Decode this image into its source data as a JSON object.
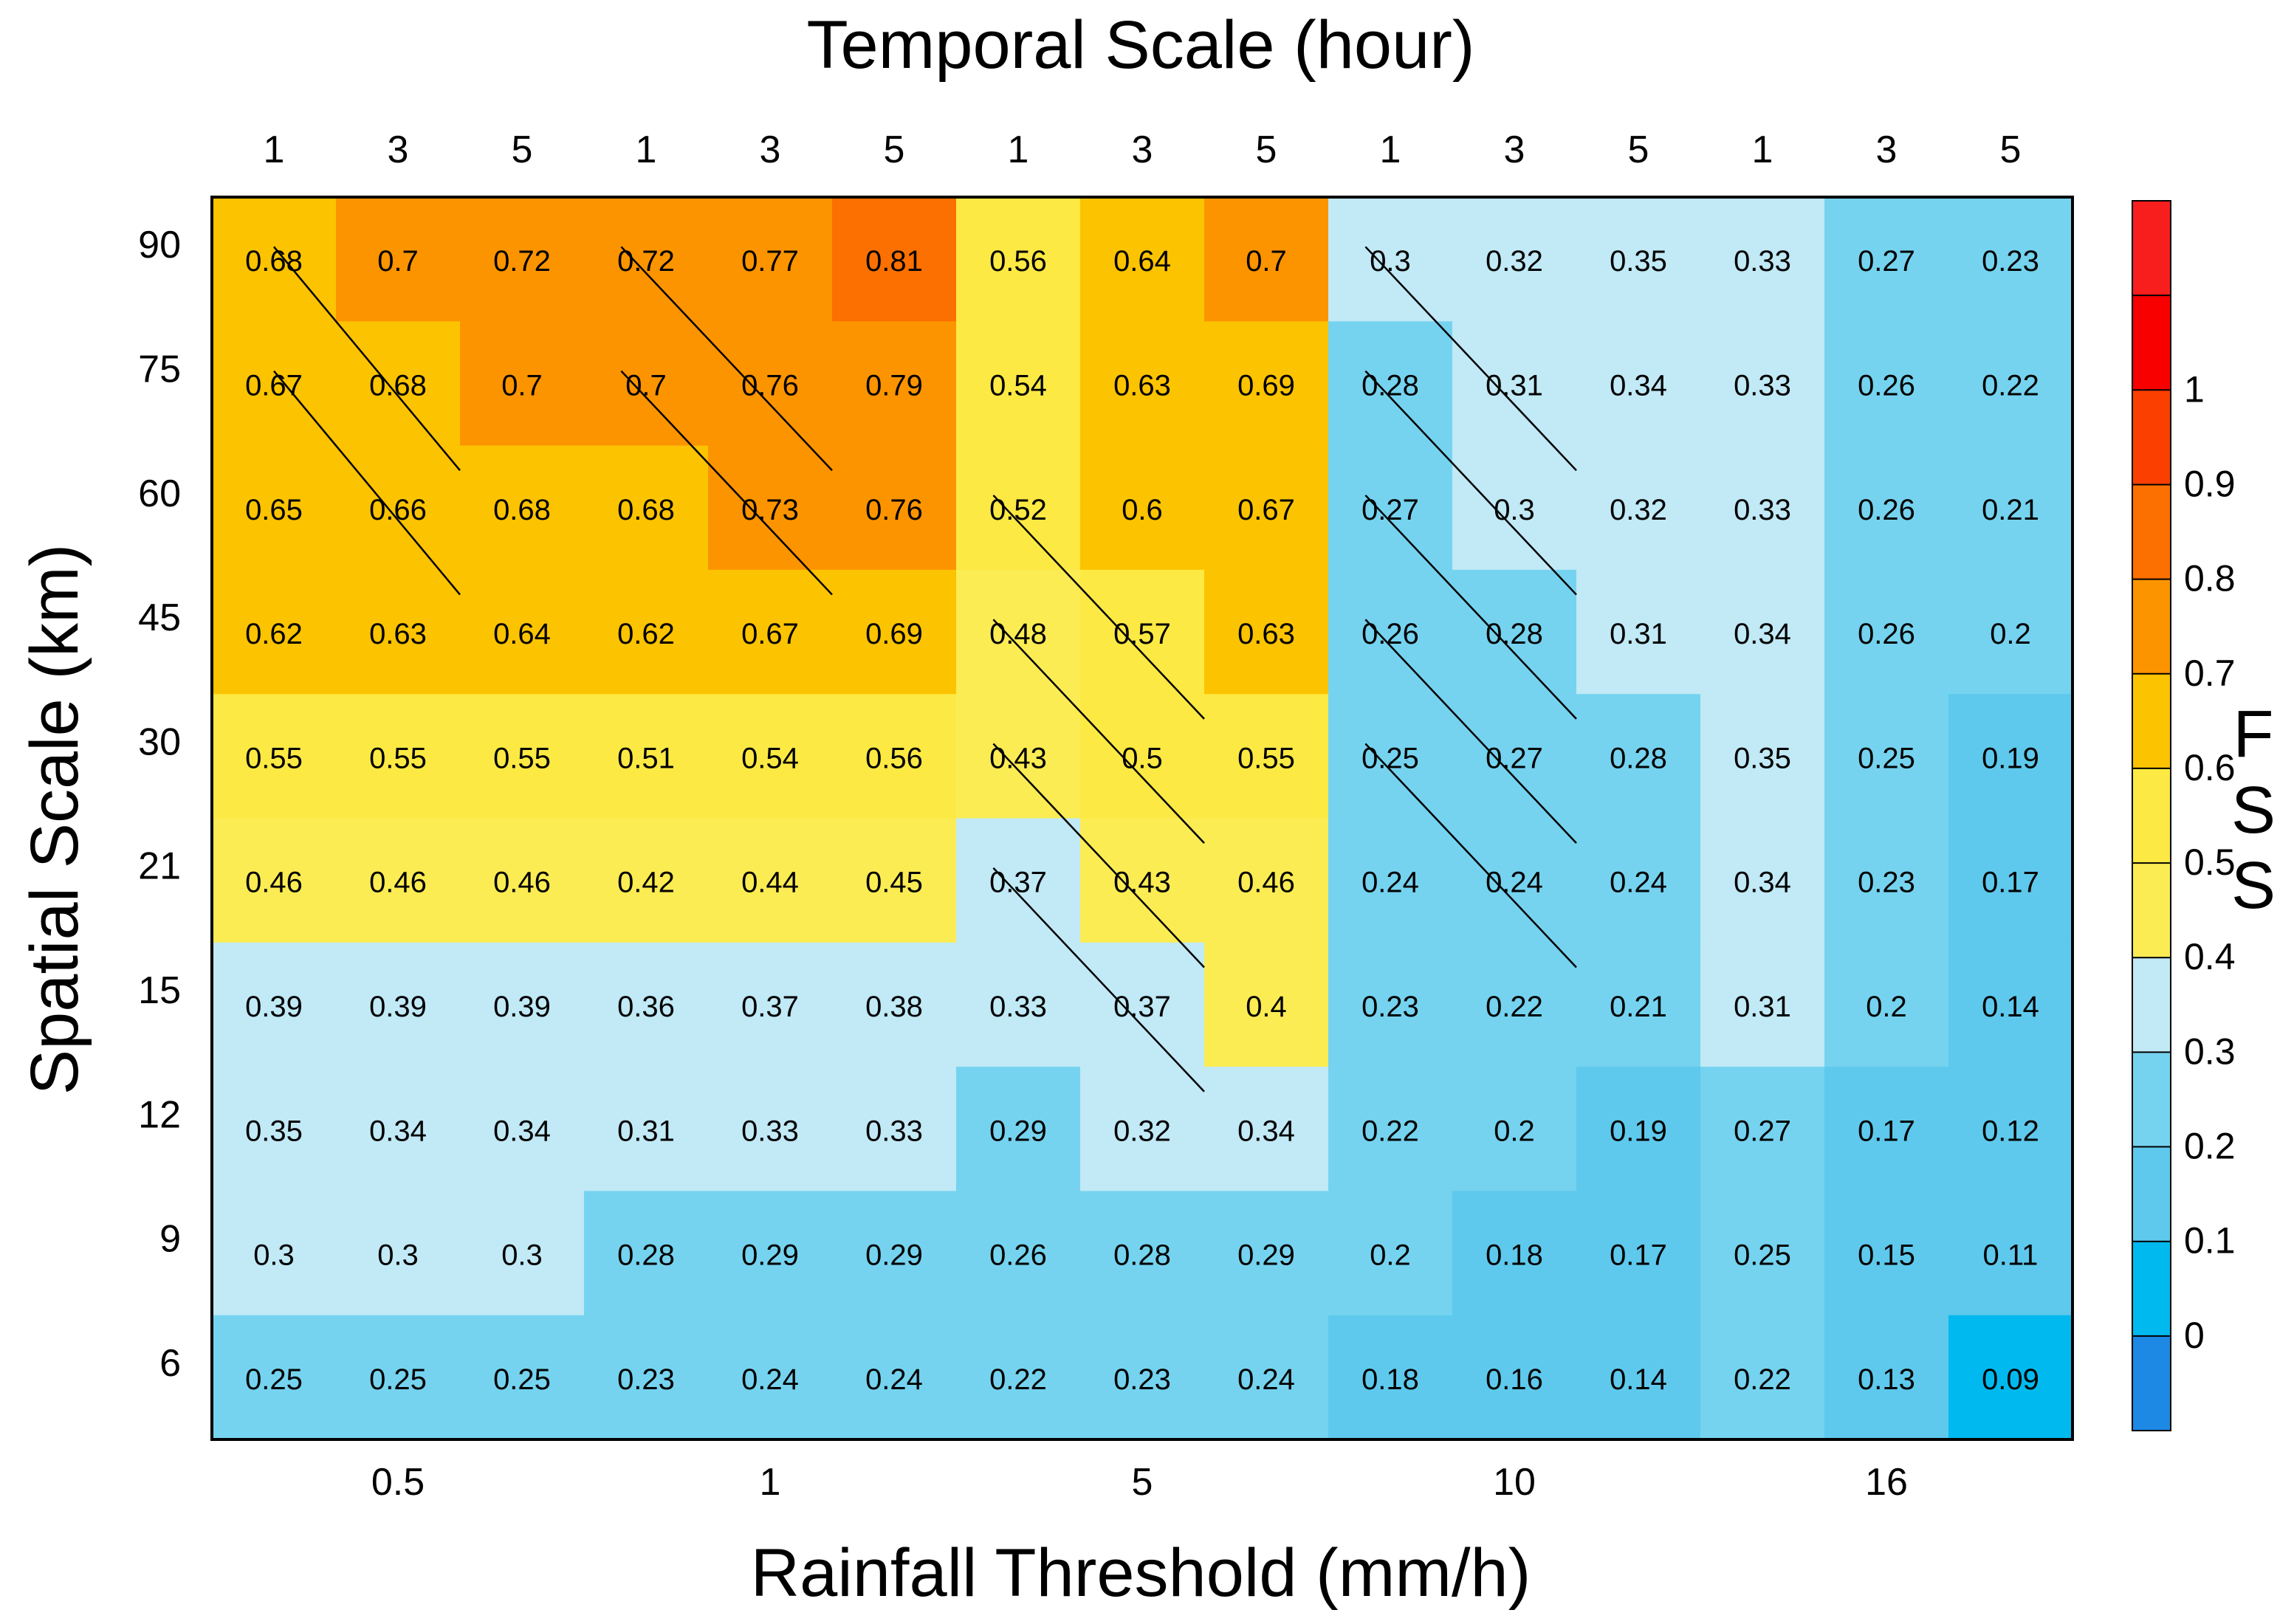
{
  "chart_data": {
    "type": "heatmap",
    "title": "Temporal Scale (hour)",
    "xlabel": "Rainfall Threshold (mm/h)",
    "ylabel": "Spatial Scale (km)",
    "colorbar_label": [
      "F",
      "S",
      "S"
    ],
    "top_ticks": [
      "1",
      "3",
      "5",
      "1",
      "3",
      "5",
      "1",
      "3",
      "5",
      "1",
      "3",
      "5",
      "1",
      "3",
      "5"
    ],
    "bottom_ticks": [
      "0.5",
      "1",
      "5",
      "10",
      "16"
    ],
    "rows": [
      "90",
      "75",
      "60",
      "45",
      "30",
      "21",
      "15",
      "12",
      "9",
      "6"
    ],
    "values": [
      [
        0.68,
        0.7,
        0.72,
        0.72,
        0.77,
        0.81,
        0.56,
        0.64,
        0.7,
        0.3,
        0.32,
        0.35,
        0.33,
        0.27,
        0.23
      ],
      [
        0.67,
        0.68,
        0.7,
        0.7,
        0.76,
        0.79,
        0.54,
        0.63,
        0.69,
        0.28,
        0.31,
        0.34,
        0.33,
        0.26,
        0.22
      ],
      [
        0.65,
        0.66,
        0.68,
        0.68,
        0.73,
        0.76,
        0.52,
        0.6,
        0.67,
        0.27,
        0.3,
        0.32,
        0.33,
        0.26,
        0.21
      ],
      [
        0.62,
        0.63,
        0.64,
        0.62,
        0.67,
        0.69,
        0.48,
        0.57,
        0.63,
        0.26,
        0.28,
        0.31,
        0.34,
        0.26,
        0.2
      ],
      [
        0.55,
        0.55,
        0.55,
        0.51,
        0.54,
        0.56,
        0.43,
        0.5,
        0.55,
        0.25,
        0.27,
        0.28,
        0.35,
        0.25,
        0.19
      ],
      [
        0.46,
        0.46,
        0.46,
        0.42,
        0.44,
        0.45,
        0.37,
        0.43,
        0.46,
        0.24,
        0.24,
        0.24,
        0.34,
        0.23,
        0.17
      ],
      [
        0.39,
        0.39,
        0.39,
        0.36,
        0.37,
        0.38,
        0.33,
        0.37,
        0.4,
        0.23,
        0.22,
        0.21,
        0.31,
        0.2,
        0.14
      ],
      [
        0.35,
        0.34,
        0.34,
        0.31,
        0.33,
        0.33,
        0.29,
        0.32,
        0.34,
        0.22,
        0.2,
        0.19,
        0.27,
        0.17,
        0.12
      ],
      [
        0.3,
        0.3,
        0.3,
        0.28,
        0.29,
        0.29,
        0.26,
        0.28,
        0.29,
        0.2,
        0.18,
        0.17,
        0.25,
        0.15,
        0.11
      ],
      [
        0.25,
        0.25,
        0.25,
        0.23,
        0.24,
        0.24,
        0.22,
        0.23,
        0.24,
        0.18,
        0.16,
        0.14,
        0.22,
        0.13,
        0.09
      ]
    ],
    "colorbar": {
      "ticks": [
        "1",
        "0.9",
        "0.8",
        "0.7",
        "0.6",
        "0.5",
        "0.4",
        "0.3",
        "0.2",
        "0.1",
        "0"
      ],
      "colors": [
        "#1e88e5",
        "#00b9ef",
        "#5ec9ec",
        "#75d3ef",
        "#c1e9f6",
        "#fbec53",
        "#fde943",
        "#fcc300",
        "#fc9400",
        "#fb7000",
        "#fa3f00",
        "#f80000",
        "#f81e1e"
      ]
    },
    "lines": [
      {
        "x1": 0.5,
        "y1": 0.4,
        "x2": 2.0,
        "y2": 2.2
      },
      {
        "x1": 0.5,
        "y1": 1.4,
        "x2": 2.0,
        "y2": 3.2
      },
      {
        "x1": 3.3,
        "y1": 0.4,
        "x2": 5.0,
        "y2": 2.2
      },
      {
        "x1": 3.3,
        "y1": 1.4,
        "x2": 5.0,
        "y2": 3.2
      },
      {
        "x1": 6.3,
        "y1": 2.4,
        "x2": 8.0,
        "y2": 4.2
      },
      {
        "x1": 6.3,
        "y1": 3.4,
        "x2": 8.0,
        "y2": 5.2
      },
      {
        "x1": 6.3,
        "y1": 4.4,
        "x2": 8.0,
        "y2": 6.2
      },
      {
        "x1": 6.3,
        "y1": 5.4,
        "x2": 8.0,
        "y2": 7.2
      },
      {
        "x1": 9.3,
        "y1": 0.4,
        "x2": 11.0,
        "y2": 2.2
      },
      {
        "x1": 9.3,
        "y1": 1.4,
        "x2": 11.0,
        "y2": 3.2
      },
      {
        "x1": 9.3,
        "y1": 2.4,
        "x2": 11.0,
        "y2": 4.2
      },
      {
        "x1": 9.3,
        "y1": 3.4,
        "x2": 11.0,
        "y2": 5.2
      },
      {
        "x1": 9.3,
        "y1": 4.4,
        "x2": 11.0,
        "y2": 6.2
      }
    ]
  }
}
